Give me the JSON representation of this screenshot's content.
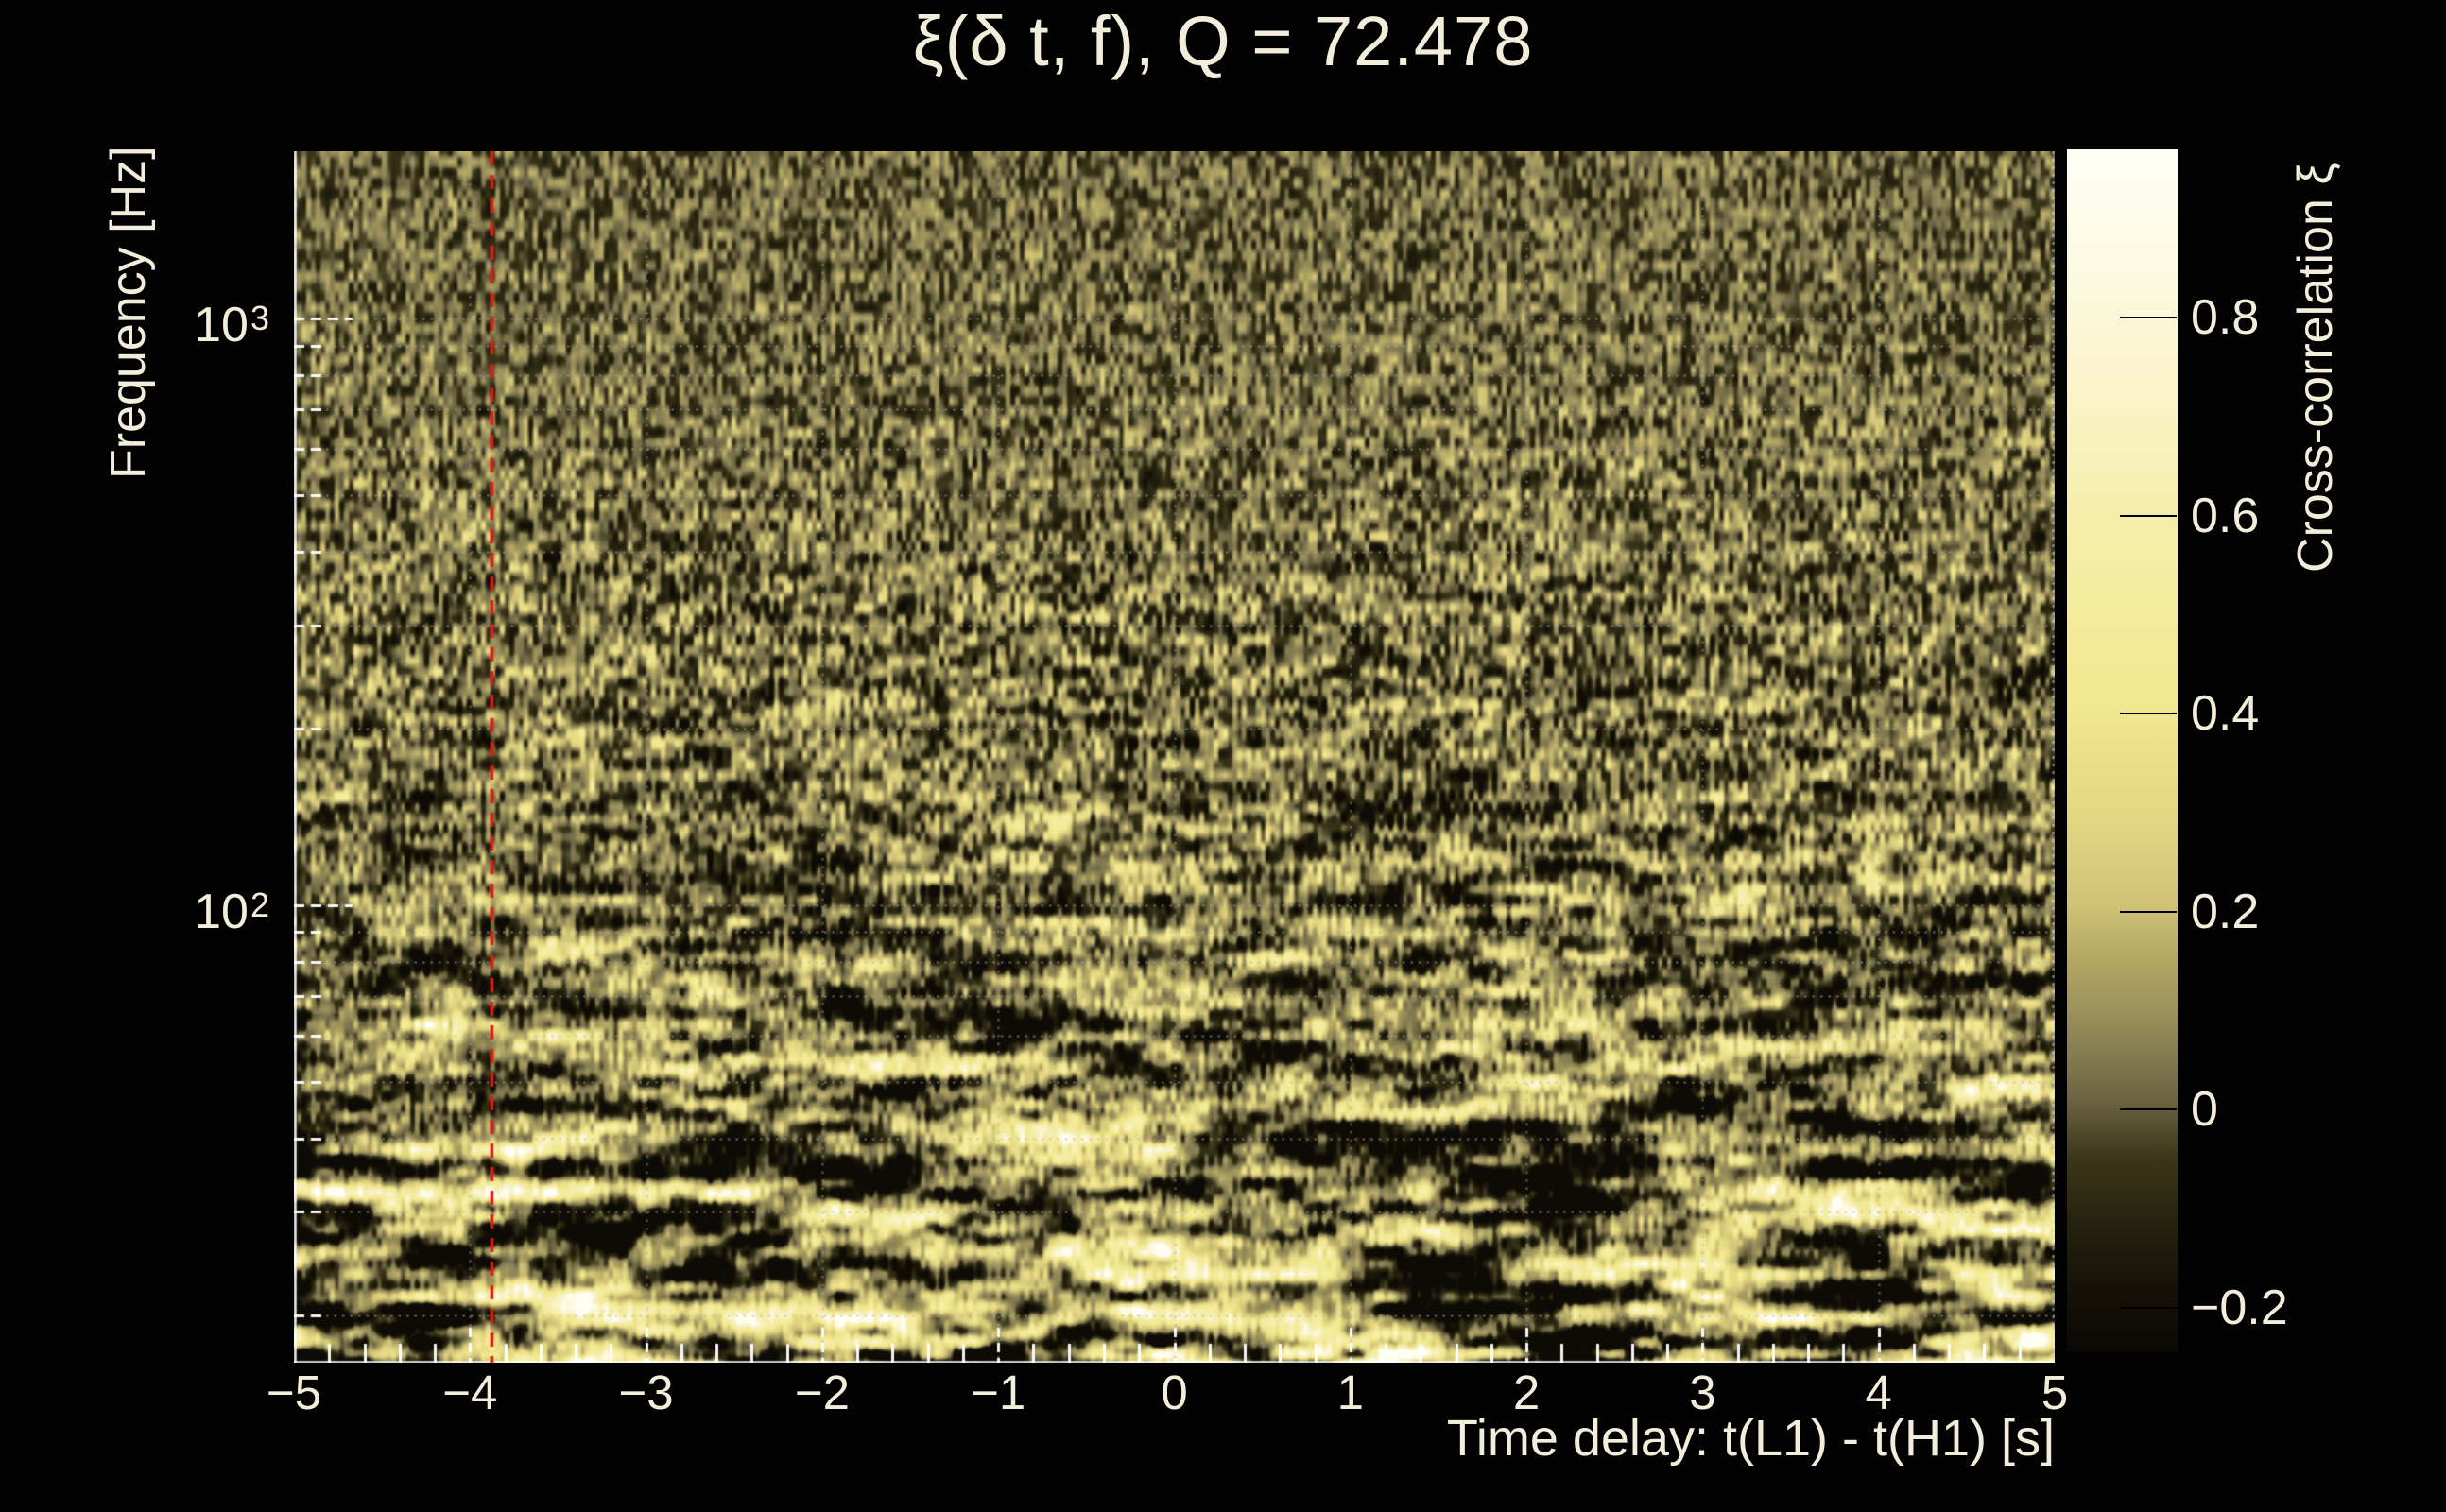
{
  "title": "ξ(δ t, f), Q = 72.478",
  "axes": {
    "x": {
      "label": "Time delay: t(L1) - t(H1) [s]",
      "tick_labels": [
        "−5",
        "−4",
        "−3",
        "−2",
        "−1",
        "0",
        "1",
        "2",
        "3",
        "4",
        "5"
      ],
      "tick_values": [
        -5,
        -4,
        -3,
        -2,
        -1,
        0,
        1,
        2,
        3,
        4,
        5
      ]
    },
    "y": {
      "label": "Frequency [Hz]",
      "scale": "log",
      "major_ticks": [
        {
          "base": "10",
          "exp": "3",
          "value": 1000
        },
        {
          "base": "10",
          "exp": "2",
          "value": 100
        }
      ]
    }
  },
  "colorbar": {
    "label": "Cross-correlation ξ",
    "tick_labels": [
      "0.8",
      "0.6",
      "0.4",
      "0.2",
      "0",
      "−0.2"
    ],
    "tick_values": [
      0.8,
      0.6,
      0.4,
      0.2,
      0,
      -0.2
    ]
  },
  "chart_data": {
    "type": "heatmap",
    "title": "ξ(δ t, f), Q = 72.478",
    "q_value": 72.478,
    "xlabel": "Time delay: t(L1) - t(H1) [s]",
    "ylabel": "Frequency [Hz]",
    "x_range": [
      -5,
      5
    ],
    "x_ticks": [
      -5,
      -4,
      -3,
      -2,
      -1,
      0,
      1,
      2,
      3,
      4,
      5
    ],
    "x_minor_tick_step": 0.2,
    "y_scale": "log",
    "y_range_hz": [
      16.6,
      1930
    ],
    "y_major_ticks_hz": [
      100,
      1000
    ],
    "colorbar_label": "Cross-correlation ξ",
    "colorbar_range": [
      -0.244,
      0.97
    ],
    "colorbar_ticks": [
      0.8,
      0.6,
      0.4,
      0.2,
      0,
      -0.2
    ],
    "marker_line": {
      "x": -3.88,
      "style": "dashed",
      "orientation": "vertical"
    },
    "grid": "dotted gridlines at integer time delays and at log-decade subdivisions of frequency",
    "content": "stochastic cross-correlation noise field: fine olive speckle at high frequency, bright horizontal streaks and blobs below ~100 Hz (no discrete data points)"
  },
  "colors": {
    "background": "#020202",
    "text": "#f3eedb",
    "marker_line": "#e21b12",
    "grid_dots": "#aaaaaa",
    "tick_white": "#ffffff",
    "colorbar_tick": "#000000",
    "colormap_stops": [
      [
        0.0,
        "#0b0905"
      ],
      [
        0.05,
        "#161107"
      ],
      [
        0.1,
        "#23200e"
      ],
      [
        0.16,
        "#3b3619"
      ],
      [
        0.21,
        "#6b6544"
      ],
      [
        0.27,
        "#948a58"
      ],
      [
        0.33,
        "#b5a964"
      ],
      [
        0.37,
        "#cfc276"
      ],
      [
        0.45,
        "#e4d883"
      ],
      [
        0.54,
        "#f2e88f"
      ],
      [
        0.63,
        "#f4ec9f"
      ],
      [
        0.7,
        "#f5eeab"
      ],
      [
        0.78,
        "#f9f3c4"
      ],
      [
        0.86,
        "#fbf7d8"
      ],
      [
        0.93,
        "#fdfbe7"
      ],
      [
        1.0,
        "#fffef4"
      ]
    ]
  }
}
